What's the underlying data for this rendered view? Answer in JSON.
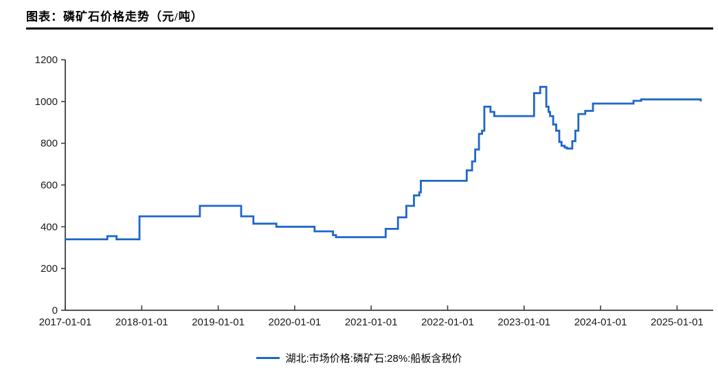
{
  "header": {
    "title": "图表：磷矿石价格走势（元/吨）"
  },
  "legend": {
    "label": "湖北:市场价格:磷矿石:28%:船板含税价",
    "color": "#1E66CC"
  },
  "colors": {
    "series_line": "#1E66CC",
    "axis": "#3c3c3c",
    "tick_text": "#1a1a1a",
    "background": "#ffffff"
  },
  "chart_data": {
    "type": "line",
    "line_style": "step-after",
    "title": "图表：磷矿石价格走势（元/吨）",
    "xlabel": "",
    "ylabel": "",
    "unit": "元/吨",
    "grid": false,
    "legend_position": "bottom-center",
    "ylim": [
      0,
      1200
    ],
    "y_ticks": [
      0,
      200,
      400,
      600,
      800,
      1000,
      1200
    ],
    "x_tick_years": [
      2017,
      2018,
      2019,
      2020,
      2021,
      2022,
      2023,
      2024,
      2025
    ],
    "x_tick_labels": [
      "2017-01-01",
      "2018-01-01",
      "2019-01-01",
      "2020-01-01",
      "2021-01-01",
      "2022-01-01",
      "2023-01-01",
      "2024-01-01",
      "2025-01-01"
    ],
    "xlim_years": [
      2017.0,
      2025.47
    ],
    "series": [
      {
        "name": "湖北:市场价格:磷矿石:28%:船板含税价",
        "color": "#1E66CC",
        "points": [
          [
            2017.0,
            340
          ],
          [
            2017.55,
            355
          ],
          [
            2017.67,
            340
          ],
          [
            2017.97,
            450
          ],
          [
            2018.76,
            500
          ],
          [
            2019.3,
            450
          ],
          [
            2019.46,
            415
          ],
          [
            2019.76,
            400
          ],
          [
            2020.26,
            378
          ],
          [
            2020.5,
            360
          ],
          [
            2020.54,
            350
          ],
          [
            2021.19,
            390
          ],
          [
            2021.35,
            445
          ],
          [
            2021.46,
            500
          ],
          [
            2021.56,
            550
          ],
          [
            2021.63,
            565
          ],
          [
            2021.65,
            620
          ],
          [
            2022.25,
            670
          ],
          [
            2022.32,
            713
          ],
          [
            2022.36,
            770
          ],
          [
            2022.41,
            845
          ],
          [
            2022.45,
            860
          ],
          [
            2022.48,
            975
          ],
          [
            2022.56,
            950
          ],
          [
            2022.61,
            930
          ],
          [
            2023.13,
            1040
          ],
          [
            2023.21,
            1070
          ],
          [
            2023.29,
            975
          ],
          [
            2023.32,
            950
          ],
          [
            2023.34,
            930
          ],
          [
            2023.38,
            890
          ],
          [
            2023.42,
            860
          ],
          [
            2023.46,
            806
          ],
          [
            2023.49,
            788
          ],
          [
            2023.53,
            780
          ],
          [
            2023.56,
            775
          ],
          [
            2023.63,
            810
          ],
          [
            2023.67,
            860
          ],
          [
            2023.71,
            940
          ],
          [
            2023.8,
            955
          ],
          [
            2023.9,
            990
          ],
          [
            2024.43,
            1003
          ],
          [
            2024.53,
            1010
          ],
          [
            2025.3,
            1010
          ],
          [
            2025.31,
            1000
          ]
        ]
      }
    ]
  }
}
